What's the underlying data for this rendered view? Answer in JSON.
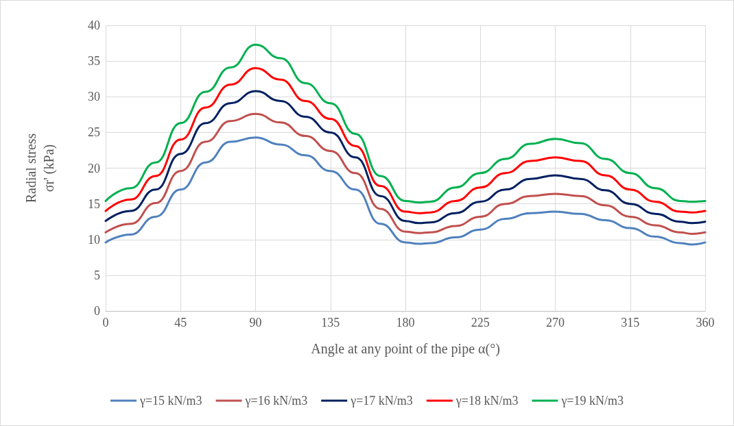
{
  "chart_data": {
    "type": "line",
    "xlabel": "Angle at any point of the pipe α(°)",
    "ylabel": "Radial stress\nσr' (kPa)",
    "x": [
      0,
      15,
      30,
      45,
      60,
      75,
      90,
      105,
      120,
      135,
      150,
      165,
      180,
      188,
      195,
      210,
      225,
      240,
      255,
      270,
      285,
      300,
      315,
      330,
      345,
      352,
      360
    ],
    "series": [
      {
        "name": "γ=15 kN/m3",
        "color": "#4f81bd",
        "values": [
          9.6,
          10.7,
          13.2,
          17.0,
          20.8,
          23.7,
          24.3,
          23.3,
          21.8,
          19.6,
          17.0,
          12.2,
          9.6,
          9.4,
          9.5,
          10.3,
          11.4,
          12.9,
          13.7,
          13.9,
          13.6,
          12.7,
          11.6,
          10.4,
          9.5,
          9.3,
          9.6
        ]
      },
      {
        "name": "γ=16 kN/m3",
        "color": "#c0504d",
        "values": [
          11.0,
          12.2,
          15.1,
          19.6,
          23.7,
          26.6,
          27.6,
          26.4,
          24.5,
          22.4,
          19.3,
          14.3,
          11.1,
          10.9,
          11.0,
          11.9,
          13.2,
          15.0,
          16.1,
          16.4,
          16.1,
          14.8,
          13.2,
          12.0,
          11.0,
          10.8,
          11.0
        ]
      },
      {
        "name": "γ=17 kN/m3",
        "color": "#002060",
        "values": [
          12.6,
          14.0,
          17.0,
          22.0,
          26.3,
          29.1,
          30.8,
          29.4,
          27.2,
          25.0,
          21.5,
          16.1,
          12.6,
          12.3,
          12.4,
          13.7,
          15.3,
          17.0,
          18.5,
          19.0,
          18.5,
          16.9,
          15.0,
          13.6,
          12.5,
          12.3,
          12.5
        ]
      },
      {
        "name": "γ=18 kN/m3",
        "color": "#ff0000",
        "values": [
          14.0,
          15.6,
          18.9,
          24.0,
          28.5,
          31.7,
          34.0,
          32.4,
          29.4,
          26.9,
          23.1,
          17.5,
          13.9,
          13.7,
          13.8,
          15.4,
          17.3,
          19.3,
          21.0,
          21.5,
          21.0,
          19.0,
          17.0,
          15.3,
          13.9,
          13.8,
          14.0
        ]
      },
      {
        "name": "γ=19 kN/m3",
        "color": "#00b050",
        "values": [
          15.4,
          17.2,
          20.8,
          26.3,
          30.7,
          34.1,
          37.3,
          35.4,
          31.9,
          29.1,
          24.8,
          18.9,
          15.4,
          15.2,
          15.3,
          17.3,
          19.3,
          21.3,
          23.4,
          24.1,
          23.5,
          21.3,
          19.3,
          17.2,
          15.4,
          15.3,
          15.4
        ]
      }
    ],
    "xlim": [
      0,
      360
    ],
    "xticks": [
      0,
      45,
      90,
      135,
      180,
      225,
      270,
      315,
      360
    ],
    "ylim": [
      0,
      40
    ],
    "yticks": [
      0,
      5,
      10,
      15,
      20,
      25,
      30,
      35,
      40
    ],
    "grid": true,
    "legend": "bottom",
    "marker": "none",
    "line_style": "solid"
  }
}
